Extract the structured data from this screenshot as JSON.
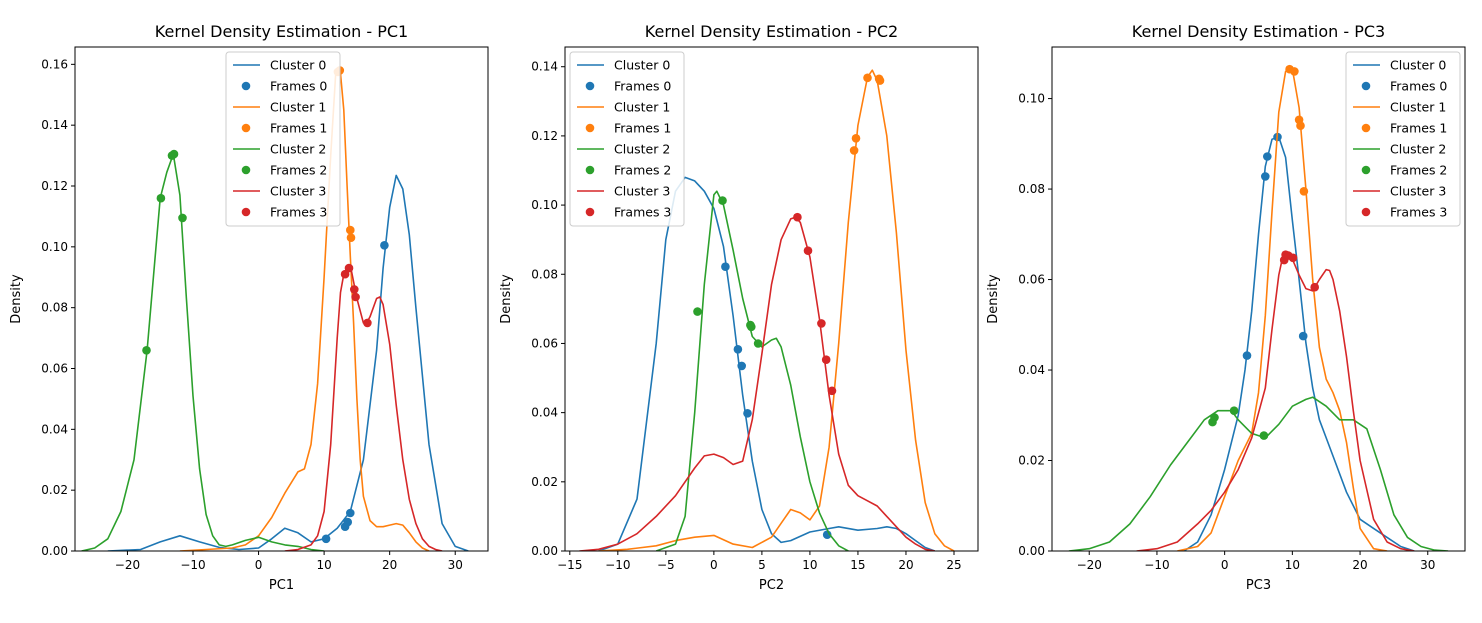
{
  "colors": {
    "Cluster 0": "#1f77b4",
    "Cluster 1": "#ff7f0e",
    "Cluster 2": "#2ca02c",
    "Cluster 3": "#d62728"
  },
  "chart_data": [
    {
      "type": "line",
      "title": "Kernel Density Estimation - PC1",
      "xlabel": "PC1",
      "ylabel": "Density",
      "xlim": [
        -28,
        35
      ],
      "ylim": [
        0,
        0.1657
      ],
      "xticks": [
        -20,
        -10,
        0,
        10,
        20,
        30
      ],
      "yticks": [
        0.0,
        0.02,
        0.04,
        0.06,
        0.08,
        0.1,
        0.12,
        0.14,
        0.16
      ],
      "tick_decimals": 2,
      "legend": {
        "placement": "top-center"
      },
      "series": [
        {
          "name": "Cluster 0",
          "kind": "line",
          "color": "#1f77b4",
          "x": [
            -23,
            -18,
            -15,
            -12,
            -9,
            -6,
            -3,
            0,
            2,
            4,
            6,
            8,
            10,
            12,
            14,
            16,
            18,
            19,
            20,
            21,
            22,
            23,
            24,
            26,
            28,
            30,
            32
          ],
          "y": [
            0,
            0.0005,
            0.003,
            0.005,
            0.003,
            0.0012,
            0.0005,
            0.001,
            0.004,
            0.0075,
            0.006,
            0.003,
            0.004,
            0.0075,
            0.013,
            0.03,
            0.066,
            0.093,
            0.113,
            0.1235,
            0.119,
            0.104,
            0.08,
            0.035,
            0.009,
            0.0015,
            0
          ]
        },
        {
          "name": "Frames 0",
          "kind": "scatter",
          "color": "#1f77b4",
          "x": [
            10.3,
            13.2,
            13.6,
            14.0,
            19.2
          ],
          "y": [
            0.004,
            0.008,
            0.0095,
            0.0125,
            0.1005
          ]
        },
        {
          "name": "Cluster 1",
          "kind": "line",
          "color": "#ff7f0e",
          "x": [
            -12,
            -8,
            -4,
            -2,
            0,
            2,
            4,
            6,
            7,
            8,
            9,
            10,
            11,
            11.8,
            12.5,
            13,
            13.5,
            14,
            14.5,
            15,
            15.5,
            16,
            17,
            18,
            19,
            20,
            21,
            22,
            23,
            24,
            25,
            26
          ],
          "y": [
            0,
            0.0005,
            0.001,
            0.002,
            0.005,
            0.011,
            0.019,
            0.026,
            0.027,
            0.035,
            0.055,
            0.09,
            0.13,
            0.158,
            0.157,
            0.145,
            0.12,
            0.097,
            0.075,
            0.05,
            0.03,
            0.018,
            0.01,
            0.008,
            0.008,
            0.0085,
            0.009,
            0.0085,
            0.006,
            0.003,
            0.001,
            0
          ]
        },
        {
          "name": "Frames 1",
          "kind": "scatter",
          "color": "#ff7f0e",
          "x": [
            12.1,
            12.4,
            14.0,
            14.1
          ],
          "y": [
            0.1575,
            0.158,
            0.1055,
            0.103
          ]
        },
        {
          "name": "Cluster 2",
          "kind": "line",
          "color": "#2ca02c",
          "x": [
            -27,
            -25,
            -23,
            -21,
            -19,
            -17,
            -15,
            -14,
            -13,
            -12,
            -11,
            -10,
            -9,
            -8,
            -7,
            -6,
            -5,
            -4,
            -2,
            0,
            2,
            4,
            6,
            8,
            10
          ],
          "y": [
            0,
            0.001,
            0.004,
            0.013,
            0.03,
            0.066,
            0.116,
            0.1245,
            0.1305,
            0.117,
            0.083,
            0.051,
            0.027,
            0.012,
            0.005,
            0.002,
            0.0015,
            0.002,
            0.0035,
            0.0045,
            0.003,
            0.002,
            0.0015,
            0.0005,
            0
          ]
        },
        {
          "name": "Frames 2",
          "kind": "scatter",
          "color": "#2ca02c",
          "x": [
            -17.1,
            -14.9,
            -13.2,
            -12.9,
            -11.6
          ],
          "y": [
            0.066,
            0.116,
            0.13,
            0.1305,
            0.1095
          ]
        },
        {
          "name": "Cluster 3",
          "kind": "line",
          "color": "#d62728",
          "x": [
            4,
            6,
            8,
            9,
            10,
            11,
            12,
            12.5,
            13,
            14,
            15,
            16,
            16.5,
            17,
            18,
            18.5,
            19,
            20,
            21,
            22,
            23,
            24,
            25,
            26,
            27,
            28
          ],
          "y": [
            0,
            0.0005,
            0.002,
            0.005,
            0.013,
            0.035,
            0.07,
            0.085,
            0.091,
            0.094,
            0.083,
            0.075,
            0.075,
            0.077,
            0.083,
            0.0835,
            0.081,
            0.068,
            0.048,
            0.03,
            0.017,
            0.009,
            0.004,
            0.0015,
            0.0005,
            0
          ]
        },
        {
          "name": "Frames 3",
          "kind": "scatter",
          "color": "#d62728",
          "x": [
            13.2,
            13.8,
            14.6,
            14.8,
            16.6
          ],
          "y": [
            0.091,
            0.093,
            0.086,
            0.0835,
            0.075
          ]
        }
      ]
    },
    {
      "type": "line",
      "title": "Kernel Density Estimation - PC2",
      "xlabel": "PC2",
      "ylabel": "Density",
      "xlim": [
        -15.5,
        27.5
      ],
      "ylim": [
        0,
        0.1457
      ],
      "xticks": [
        -15,
        -10,
        -5,
        0,
        5,
        10,
        15,
        20,
        25
      ],
      "yticks": [
        0.0,
        0.02,
        0.04,
        0.06,
        0.08,
        0.1,
        0.12,
        0.14
      ],
      "tick_decimals": 2,
      "legend": {
        "placement": "top-left"
      },
      "series": [
        {
          "name": "Cluster 0",
          "kind": "line",
          "color": "#1f77b4",
          "x": [
            -12,
            -10,
            -8,
            -6,
            -5,
            -4,
            -3,
            -2,
            -1,
            0,
            1,
            2,
            3,
            4,
            5,
            6,
            7,
            8,
            10,
            12,
            13,
            15,
            17,
            18,
            19,
            20,
            21,
            22,
            23
          ],
          "y": [
            0,
            0.002,
            0.015,
            0.06,
            0.09,
            0.104,
            0.108,
            0.107,
            0.104,
            0.099,
            0.088,
            0.068,
            0.045,
            0.026,
            0.012,
            0.005,
            0.0025,
            0.003,
            0.0055,
            0.0065,
            0.007,
            0.006,
            0.0065,
            0.007,
            0.0065,
            0.005,
            0.003,
            0.001,
            0
          ]
        },
        {
          "name": "Frames 0",
          "kind": "scatter",
          "color": "#1f77b4",
          "x": [
            1.2,
            2.5,
            2.9,
            3.5,
            11.8
          ],
          "y": [
            0.0822,
            0.0583,
            0.0535,
            0.0398,
            0.0047
          ]
        },
        {
          "name": "Cluster 1",
          "kind": "line",
          "color": "#ff7f0e",
          "x": [
            -12,
            -9,
            -6,
            -4,
            -2,
            0,
            2,
            4,
            6,
            7,
            8,
            9,
            10,
            11,
            12,
            13,
            14,
            15,
            16,
            16.5,
            17,
            18,
            19,
            20,
            21,
            22,
            23,
            24,
            25
          ],
          "y": [
            0,
            0.0005,
            0.0015,
            0.003,
            0.004,
            0.0045,
            0.002,
            0.001,
            0.004,
            0.008,
            0.012,
            0.011,
            0.009,
            0.013,
            0.03,
            0.06,
            0.095,
            0.123,
            0.137,
            0.139,
            0.136,
            0.12,
            0.092,
            0.058,
            0.032,
            0.014,
            0.005,
            0.0015,
            0
          ]
        },
        {
          "name": "Frames 1",
          "kind": "scatter",
          "color": "#ff7f0e",
          "x": [
            14.6,
            14.8,
            16.0,
            17.2,
            17.3
          ],
          "y": [
            0.1158,
            0.1193,
            0.1368,
            0.1365,
            0.136
          ]
        },
        {
          "name": "Cluster 2",
          "kind": "line",
          "color": "#2ca02c",
          "x": [
            -6,
            -4,
            -3,
            -2,
            -1,
            0,
            0.3,
            1,
            2,
            3,
            4,
            5,
            6,
            6.5,
            7,
            8,
            9,
            10,
            11,
            12,
            13,
            14
          ],
          "y": [
            0,
            0.002,
            0.01,
            0.04,
            0.077,
            0.103,
            0.104,
            0.1,
            0.087,
            0.073,
            0.062,
            0.059,
            0.061,
            0.0615,
            0.059,
            0.048,
            0.033,
            0.02,
            0.011,
            0.005,
            0.0015,
            0
          ]
        },
        {
          "name": "Frames 2",
          "kind": "scatter",
          "color": "#2ca02c",
          "x": [
            -1.7,
            0.9,
            3.8,
            3.9,
            4.6
          ],
          "y": [
            0.0692,
            0.1013,
            0.0653,
            0.0648,
            0.06
          ]
        },
        {
          "name": "Cluster 3",
          "kind": "line",
          "color": "#d62728",
          "x": [
            -14,
            -12,
            -10,
            -8,
            -6,
            -4,
            -2,
            -1,
            0,
            1,
            2,
            3,
            4,
            5,
            6,
            7,
            8,
            8.5,
            9,
            10,
            11,
            12,
            13,
            14,
            15,
            16,
            17,
            18,
            19,
            20,
            21,
            22,
            23
          ],
          "y": [
            0,
            0.0005,
            0.002,
            0.005,
            0.01,
            0.016,
            0.024,
            0.0275,
            0.028,
            0.027,
            0.025,
            0.026,
            0.038,
            0.057,
            0.077,
            0.09,
            0.096,
            0.0965,
            0.095,
            0.085,
            0.067,
            0.045,
            0.028,
            0.019,
            0.016,
            0.0145,
            0.013,
            0.01,
            0.007,
            0.004,
            0.002,
            0.0005,
            0
          ]
        },
        {
          "name": "Frames 3",
          "kind": "scatter",
          "color": "#d62728",
          "x": [
            8.7,
            9.8,
            11.2,
            11.7,
            12.3
          ],
          "y": [
            0.0965,
            0.0868,
            0.0658,
            0.0553,
            0.0463
          ]
        }
      ]
    },
    {
      "type": "line",
      "title": "Kernel Density Estimation - PC3",
      "xlabel": "PC3",
      "ylabel": "Density",
      "xlim": [
        -25.5,
        35.5
      ],
      "ylim": [
        0,
        0.1114
      ],
      "xticks": [
        -20,
        -10,
        0,
        10,
        20,
        30
      ],
      "yticks": [
        0.0,
        0.02,
        0.04,
        0.06,
        0.08,
        0.1
      ],
      "tick_decimals": 2,
      "legend": {
        "placement": "top-right"
      },
      "series": [
        {
          "name": "Cluster 0",
          "kind": "line",
          "color": "#1f77b4",
          "x": [
            -6,
            -4,
            -2,
            0,
            2,
            3,
            4,
            5,
            6,
            7,
            8,
            9,
            10,
            11,
            12,
            13,
            14,
            15,
            16,
            18,
            20,
            22,
            24,
            26,
            28
          ],
          "y": [
            0,
            0.002,
            0.008,
            0.018,
            0.03,
            0.04,
            0.053,
            0.07,
            0.085,
            0.091,
            0.0915,
            0.087,
            0.073,
            0.06,
            0.046,
            0.036,
            0.029,
            0.025,
            0.021,
            0.013,
            0.007,
            0.005,
            0.003,
            0.001,
            0
          ]
        },
        {
          "name": "Frames 0",
          "kind": "scatter",
          "color": "#1f77b4",
          "x": [
            3.3,
            6.0,
            6.3,
            7.8,
            11.6
          ],
          "y": [
            0.0432,
            0.0828,
            0.0872,
            0.0915,
            0.0475
          ]
        },
        {
          "name": "Cluster 1",
          "kind": "line",
          "color": "#ff7f0e",
          "x": [
            -7,
            -4,
            -2,
            0,
            2,
            4,
            5,
            6,
            7,
            8,
            9,
            10,
            11,
            12,
            13,
            14,
            15,
            16,
            17,
            18,
            19,
            20,
            22,
            24
          ],
          "y": [
            0,
            0.001,
            0.004,
            0.012,
            0.02,
            0.026,
            0.035,
            0.052,
            0.075,
            0.097,
            0.106,
            0.1065,
            0.098,
            0.08,
            0.06,
            0.045,
            0.038,
            0.035,
            0.031,
            0.024,
            0.014,
            0.005,
            0.0005,
            0
          ]
        },
        {
          "name": "Frames 1",
          "kind": "scatter",
          "color": "#ff7f0e",
          "x": [
            9.6,
            10.3,
            11.0,
            11.2,
            11.7
          ],
          "y": [
            0.1065,
            0.106,
            0.0953,
            0.094,
            0.0795
          ]
        },
        {
          "name": "Cluster 2",
          "kind": "line",
          "color": "#2ca02c",
          "x": [
            -23,
            -20,
            -17,
            -14,
            -11,
            -8,
            -5,
            -3,
            -1,
            1,
            2,
            4,
            6,
            8,
            10,
            12,
            13,
            15,
            17,
            19,
            21,
            23,
            25,
            27,
            29,
            31,
            33
          ],
          "y": [
            0,
            0.0005,
            0.002,
            0.006,
            0.012,
            0.019,
            0.025,
            0.029,
            0.031,
            0.031,
            0.029,
            0.026,
            0.025,
            0.028,
            0.032,
            0.0335,
            0.034,
            0.032,
            0.029,
            0.029,
            0.027,
            0.018,
            0.008,
            0.003,
            0.001,
            0.0002,
            0
          ]
        },
        {
          "name": "Frames 2",
          "kind": "scatter",
          "color": "#2ca02c",
          "x": [
            -1.8,
            -1.5,
            1.4,
            5.8
          ],
          "y": [
            0.0285,
            0.0295,
            0.031,
            0.0255
          ]
        },
        {
          "name": "Cluster 3",
          "kind": "line",
          "color": "#d62728",
          "x": [
            -13,
            -10,
            -7,
            -4,
            -2,
            0,
            2,
            4,
            6,
            7,
            8,
            8.5,
            9,
            10,
            11,
            12,
            13,
            14,
            15,
            15.5,
            16,
            17,
            18,
            19,
            20,
            22,
            24,
            26,
            28
          ],
          "y": [
            0,
            0.0005,
            0.002,
            0.006,
            0.009,
            0.013,
            0.018,
            0.025,
            0.036,
            0.049,
            0.061,
            0.0645,
            0.0655,
            0.0645,
            0.061,
            0.058,
            0.0575,
            0.06,
            0.0622,
            0.062,
            0.06,
            0.053,
            0.043,
            0.031,
            0.02,
            0.007,
            0.002,
            0.0005,
            0
          ]
        },
        {
          "name": "Frames 3",
          "kind": "scatter",
          "color": "#d62728",
          "x": [
            8.8,
            9.0,
            9.4,
            10.1,
            13.3
          ],
          "y": [
            0.0643,
            0.0655,
            0.0653,
            0.0648,
            0.0583
          ]
        }
      ]
    }
  ]
}
